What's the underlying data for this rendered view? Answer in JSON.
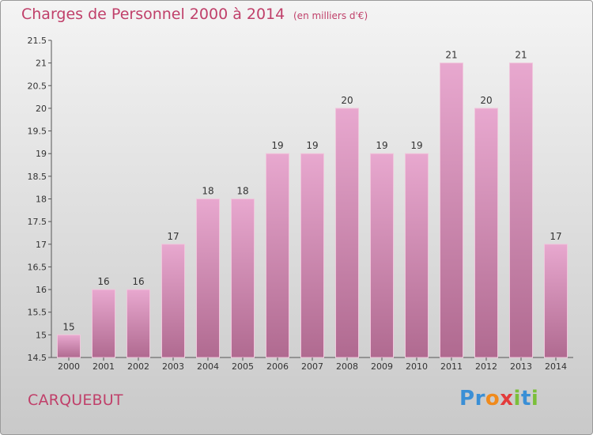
{
  "header": {
    "title": "Charges de Personnel 2000 à 2014",
    "subtitle": "(en milliers d'€)"
  },
  "footer": {
    "commune": "CARQUEBUT",
    "brand_letters": [
      "P",
      "r",
      "o",
      "x",
      "i",
      "t",
      "i"
    ],
    "brand_colors": [
      "#3a8fd6",
      "#3a8fd6",
      "#f08a1c",
      "#e33b3b",
      "#7bbf3a",
      "#3a8fd6",
      "#7bbf3a"
    ]
  },
  "colors": {
    "bar_top": "#e8a8cf",
    "bar_bottom": "#b06a90",
    "bar_edge": "#f0c6dc",
    "text": "#333333",
    "accent": "#c0406a"
  },
  "chart_data": {
    "type": "bar",
    "categories": [
      "2000",
      "2001",
      "2002",
      "2003",
      "2004",
      "2005",
      "2006",
      "2007",
      "2008",
      "2009",
      "2010",
      "2011",
      "2012",
      "2013",
      "2014"
    ],
    "values": [
      15,
      16,
      16,
      17,
      18,
      18,
      19,
      19,
      20,
      19,
      19,
      21,
      20,
      21,
      17
    ],
    "data_labels": [
      "15",
      "16",
      "16",
      "17",
      "18",
      "18",
      "19",
      "19",
      "20",
      "19",
      "19",
      "21",
      "20",
      "21",
      "17"
    ],
    "ylim": [
      14.5,
      21.5
    ],
    "yticks": [
      14.5,
      15,
      15.5,
      16,
      16.5,
      17,
      17.5,
      18,
      18.5,
      19,
      19.5,
      20,
      20.5,
      21,
      21.5
    ],
    "ytick_labels": [
      "14.5",
      "15",
      "15.5",
      "16",
      "16.5",
      "17",
      "17.5",
      "18",
      "18.5",
      "19",
      "19.5",
      "20",
      "20.5",
      "21",
      "21.5"
    ],
    "grid": false,
    "legend": "none"
  }
}
